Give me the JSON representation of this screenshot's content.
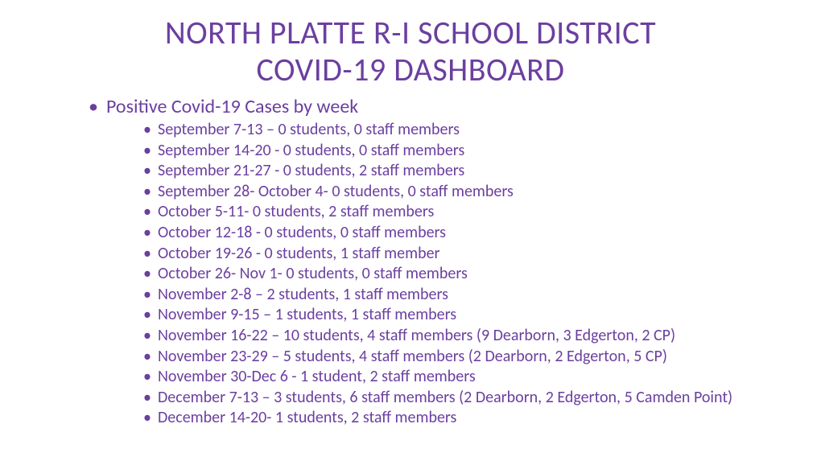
{
  "colors": {
    "text": "#6b3fa0",
    "background": "#ffffff"
  },
  "typography": {
    "title_fontsize": 40,
    "outer_fontsize": 24,
    "inner_fontsize": 20,
    "font_family": "Calibri"
  },
  "title_line1": "NORTH PLATTE R-I SCHOOL DISTRICT",
  "title_line2": "COVID-19 DASHBOARD",
  "section_heading": "Positive Covid-19 Cases by week",
  "items": [
    "September 7-13 – 0 students, 0 staff members",
    "September 14-20 - 0 students, 0 staff members",
    "September 21-27 - 0 students, 2 staff members",
    "September 28- October 4- 0 students, 0 staff members",
    "October 5-11- 0 students, 2 staff members",
    "October 12-18 - 0 students, 0 staff members",
    "October 19-26 - 0 students, 1 staff member",
    "October 26- Nov 1- 0 students, 0 staff members",
    "November 2-8 – 2 students, 1 staff members",
    "November 9-15 – 1 students, 1 staff members",
    "November 16-22 – 10 students, 4 staff members (9 Dearborn, 3 Edgerton, 2 CP)",
    "November 23-29 – 5 students, 4 staff members (2 Dearborn, 2 Edgerton, 5 CP)",
    "November 30-Dec 6 -  1 student, 2 staff members",
    "December 7-13 – 3 students, 6 staff members (2 Dearborn, 2 Edgerton, 5 Camden Point)",
    "December 14-20- 1 students, 2 staff members"
  ]
}
